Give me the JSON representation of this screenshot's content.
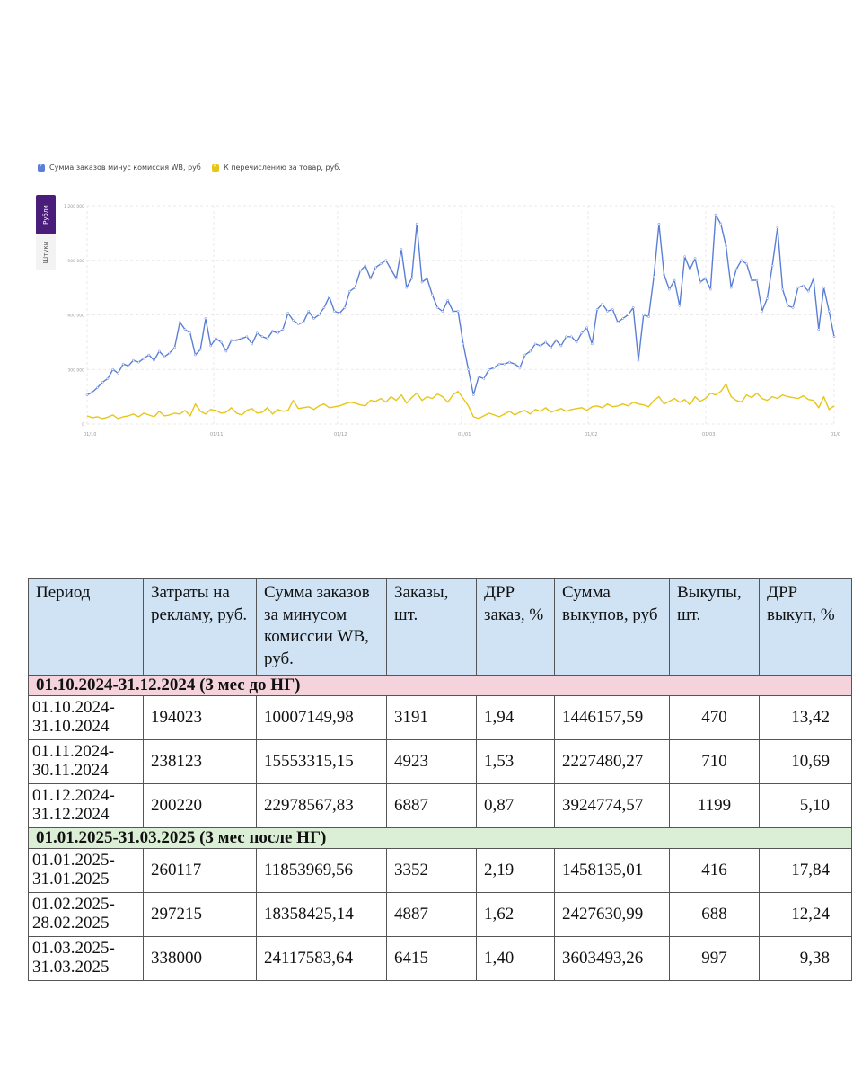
{
  "chart_data": {
    "type": "line",
    "legend": [
      {
        "name": "Сумма заказов минус комиссия WB, руб",
        "color": "#5b7fd6"
      },
      {
        "name": "К перечислению за товар, руб.",
        "color": "#e6c619"
      }
    ],
    "toggles": {
      "rubles": "Рубли",
      "units": "Штуки"
    },
    "ylim": [
      0,
      1200000
    ],
    "yticks": [
      "0",
      "300 000",
      "600 000",
      "900 000",
      "1 200 000"
    ],
    "xticks": [
      "01/10",
      "01/11",
      "01/12",
      "01/01",
      "01/02",
      "01/03",
      "01/0"
    ],
    "series": [
      {
        "name": "Сумма заказов минус комиссия WB, руб",
        "color": "#5b7fd6",
        "values": [
          160000,
          175000,
          200000,
          230000,
          250000,
          300000,
          280000,
          330000,
          320000,
          350000,
          340000,
          360000,
          380000,
          350000,
          400000,
          370000,
          390000,
          420000,
          560000,
          520000,
          500000,
          380000,
          410000,
          580000,
          430000,
          470000,
          450000,
          400000,
          460000,
          460000,
          470000,
          480000,
          440000,
          500000,
          480000,
          470000,
          510000,
          500000,
          520000,
          610000,
          570000,
          550000,
          560000,
          620000,
          580000,
          600000,
          640000,
          700000,
          620000,
          610000,
          640000,
          730000,
          750000,
          840000,
          870000,
          800000,
          860000,
          880000,
          900000,
          850000,
          800000,
          960000,
          750000,
          800000,
          1100000,
          780000,
          800000,
          710000,
          640000,
          620000,
          680000,
          620000,
          620000,
          440000,
          300000,
          160000,
          260000,
          250000,
          300000,
          310000,
          330000,
          330000,
          340000,
          330000,
          310000,
          380000,
          400000,
          440000,
          430000,
          450000,
          420000,
          460000,
          430000,
          480000,
          480000,
          450000,
          500000,
          530000,
          440000,
          630000,
          660000,
          620000,
          630000,
          560000,
          580000,
          600000,
          640000,
          350000,
          600000,
          590000,
          810000,
          1100000,
          820000,
          740000,
          790000,
          650000,
          920000,
          850000,
          910000,
          780000,
          800000,
          740000,
          1150000,
          1100000,
          980000,
          750000,
          850000,
          900000,
          880000,
          790000,
          790000,
          620000,
          690000,
          870000,
          1080000,
          740000,
          650000,
          640000,
          750000,
          760000,
          730000,
          800000,
          520000,
          750000,
          620000,
          480000
        ],
        "labels": "Сумма заказов минус комиссия WB, руб"
      },
      {
        "name": "К перечислению за товар, руб.",
        "color": "#e6c619",
        "values": [
          45000,
          35000,
          40000,
          30000,
          38000,
          50000,
          30000,
          40000,
          45000,
          55000,
          40000,
          60000,
          50000,
          40000,
          70000,
          45000,
          50000,
          60000,
          55000,
          75000,
          45000,
          110000,
          70000,
          55000,
          80000,
          75000,
          60000,
          65000,
          90000,
          60000,
          50000,
          75000,
          85000,
          60000,
          65000,
          90000,
          55000,
          80000,
          70000,
          75000,
          130000,
          85000,
          90000,
          95000,
          80000,
          100000,
          110000,
          90000,
          95000,
          100000,
          110000,
          120000,
          115000,
          105000,
          100000,
          130000,
          125000,
          140000,
          120000,
          150000,
          130000,
          160000,
          115000,
          145000,
          170000,
          130000,
          150000,
          140000,
          165000,
          150000,
          120000,
          160000,
          180000,
          140000,
          100000,
          40000,
          30000,
          45000,
          60000,
          50000,
          40000,
          55000,
          70000,
          50000,
          65000,
          75000,
          55000,
          80000,
          70000,
          90000,
          65000,
          75000,
          85000,
          70000,
          80000,
          85000,
          90000,
          75000,
          95000,
          100000,
          90000,
          110000,
          95000,
          100000,
          110000,
          100000,
          120000,
          110000,
          105000,
          95000,
          130000,
          150000,
          110000,
          125000,
          140000,
          120000,
          135000,
          105000,
          150000,
          125000,
          140000,
          170000,
          160000,
          180000,
          220000,
          150000,
          130000,
          120000,
          160000,
          145000,
          170000,
          140000,
          130000,
          150000,
          140000,
          160000,
          150000,
          145000,
          140000,
          155000,
          135000,
          130000,
          90000,
          150000,
          80000,
          100000
        ]
      }
    ]
  },
  "table": {
    "headers": [
      "Период",
      "Затраты на рекламу, руб.",
      "Сумма заказов за минусом комиссии WB, руб.",
      "Заказы, шт.",
      "ДРР заказ, %",
      "Сумма выкупов, руб",
      "Выкупы, шт.",
      "ДРР выкуп, %"
    ],
    "section1": "01.10.2024-31.12.2024 (3 мес до НГ)",
    "section2": "01.01.2025-31.03.2025 (3 мес после НГ)",
    "rows1": [
      [
        "01.10.2024-\n31.10.2024",
        "194023",
        "10007149,98",
        "3191",
        "1,94",
        "1446157,59",
        "470",
        "13,42"
      ],
      [
        "01.11.2024-\n30.11.2024",
        "238123",
        "15553315,15",
        "4923",
        "1,53",
        "2227480,27",
        "710",
        "10,69"
      ],
      [
        "01.12.2024-\n31.12.2024",
        "200220",
        "22978567,83",
        "6887",
        "0,87",
        "3924774,57",
        "1199",
        "5,10"
      ]
    ],
    "rows2": [
      [
        "01.01.2025-\n31.01.2025",
        "260117",
        "11853969,56",
        "3352",
        "2,19",
        "1458135,01",
        "416",
        "17,84"
      ],
      [
        "01.02.2025-\n28.02.2025",
        "297215",
        "18358425,14",
        "4887",
        "1,62",
        "2427630,99",
        "688",
        "12,24"
      ],
      [
        "01.03.2025-\n31.03.2025",
        "338000",
        "24117583,64",
        "6415",
        "1,40",
        "3603493,26",
        "997",
        "9,38"
      ]
    ]
  }
}
